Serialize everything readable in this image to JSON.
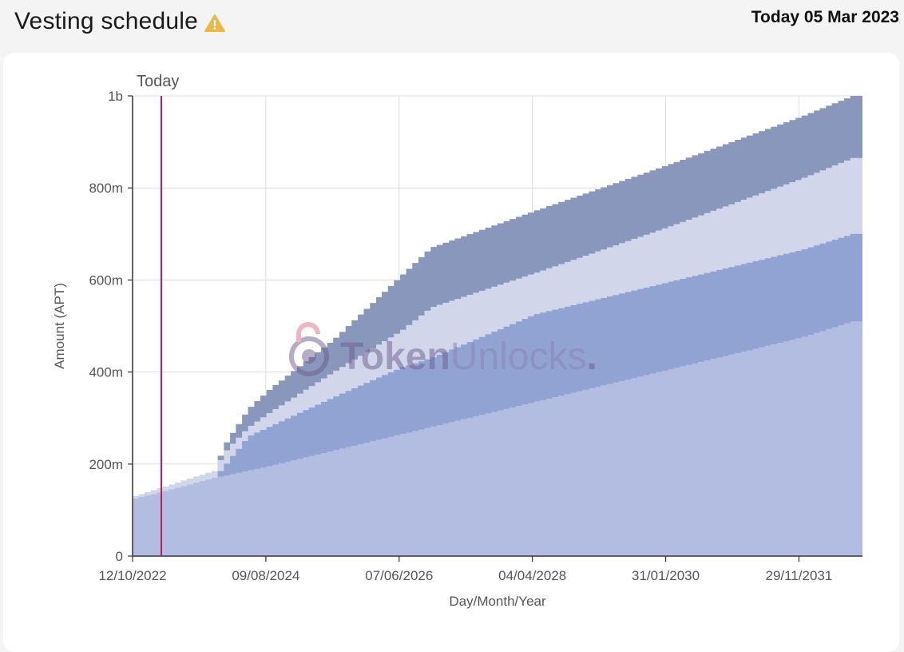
{
  "header": {
    "title": "Vesting schedule",
    "warning_icon": "warning-icon",
    "today_text": "Today 05 Mar 2023"
  },
  "watermark": {
    "text_bold": "Token",
    "text_light": "Unlocks",
    "dot": "."
  },
  "colors": {
    "series_top": "#8a97bc",
    "series_third": "#d1d6eb",
    "series_second": "#91a3d2",
    "series_base": "#b3bde2",
    "today_line": "#c2185b",
    "grid": "#dddddd"
  },
  "chart_data": {
    "type": "area",
    "stacked": true,
    "xlabel": "Day/Month/Year",
    "ylabel": "Amount (APT)",
    "ylim": [
      0,
      1000000000
    ],
    "y_ticks": [
      {
        "value": 0,
        "label": "0"
      },
      {
        "value": 200000000,
        "label": "200m"
      },
      {
        "value": 400000000,
        "label": "400m"
      },
      {
        "value": 600000000,
        "label": "600m"
      },
      {
        "value": 800000000,
        "label": "800m"
      },
      {
        "value": 1000000000,
        "label": "1b"
      }
    ],
    "x_range": [
      "2022-10-12",
      "2032-10-12"
    ],
    "x_ticks": [
      {
        "date": "2022-10-12",
        "label": "12/10/2022"
      },
      {
        "date": "2024-08-09",
        "label": "09/08/2024"
      },
      {
        "date": "2026-06-07",
        "label": "07/06/2026"
      },
      {
        "date": "2028-04-04",
        "label": "04/04/2028"
      },
      {
        "date": "2030-01-31",
        "label": "31/01/2030"
      },
      {
        "date": "2031-11-29",
        "label": "29/11/2031"
      }
    ],
    "today_marker": {
      "date": "2023-03-05",
      "label": "Today"
    },
    "grid": true,
    "step": true,
    "series_cumulative": [
      {
        "color": "#b3bde2",
        "points": [
          [
            "2022-10-12",
            125000000
          ],
          [
            "2023-03-05",
            140000000
          ],
          [
            "2023-11-12",
            170000000
          ],
          [
            "2024-08-09",
            195000000
          ],
          [
            "2026-06-07",
            265000000
          ],
          [
            "2028-04-04",
            335000000
          ],
          [
            "2030-01-31",
            405000000
          ],
          [
            "2031-11-29",
            475000000
          ],
          [
            "2032-08-12",
            510000000
          ],
          [
            "2032-10-12",
            510000000
          ]
        ]
      },
      {
        "color": "#91a3d2",
        "points": [
          [
            "2022-10-12",
            125000000
          ],
          [
            "2023-03-05",
            140000000
          ],
          [
            "2023-11-12",
            170000000
          ],
          [
            "2024-01-01",
            195000000
          ],
          [
            "2024-05-01",
            260000000
          ],
          [
            "2024-08-09",
            280000000
          ],
          [
            "2025-07-01",
            345000000
          ],
          [
            "2026-06-07",
            410000000
          ],
          [
            "2026-11-01",
            430000000
          ],
          [
            "2028-04-04",
            525000000
          ],
          [
            "2030-01-31",
            595000000
          ],
          [
            "2031-11-29",
            665000000
          ],
          [
            "2032-08-12",
            700000000
          ],
          [
            "2032-10-12",
            700000000
          ]
        ]
      },
      {
        "color": "#d1d6eb",
        "points": [
          [
            "2022-10-12",
            130000000
          ],
          [
            "2023-03-05",
            150000000
          ],
          [
            "2023-11-12",
            185000000
          ],
          [
            "2024-01-01",
            225000000
          ],
          [
            "2024-05-01",
            280000000
          ],
          [
            "2024-08-09",
            310000000
          ],
          [
            "2025-07-01",
            400000000
          ],
          [
            "2026-06-07",
            490000000
          ],
          [
            "2026-11-01",
            540000000
          ],
          [
            "2028-04-04",
            615000000
          ],
          [
            "2030-01-31",
            715000000
          ],
          [
            "2031-11-29",
            820000000
          ],
          [
            "2032-08-12",
            865000000
          ],
          [
            "2032-10-12",
            865000000
          ]
        ]
      },
      {
        "color": "#8a97bc",
        "points": [
          [
            "2022-10-12",
            130000000
          ],
          [
            "2023-03-05",
            150000000
          ],
          [
            "2023-11-12",
            185000000
          ],
          [
            "2024-01-01",
            240000000
          ],
          [
            "2024-05-01",
            320000000
          ],
          [
            "2024-08-09",
            360000000
          ],
          [
            "2025-07-01",
            470000000
          ],
          [
            "2026-06-07",
            610000000
          ],
          [
            "2026-11-01",
            670000000
          ],
          [
            "2028-04-04",
            750000000
          ],
          [
            "2030-01-31",
            850000000
          ],
          [
            "2031-11-29",
            955000000
          ],
          [
            "2032-08-12",
            1000000000
          ],
          [
            "2032-10-12",
            1000000000
          ]
        ]
      }
    ]
  }
}
